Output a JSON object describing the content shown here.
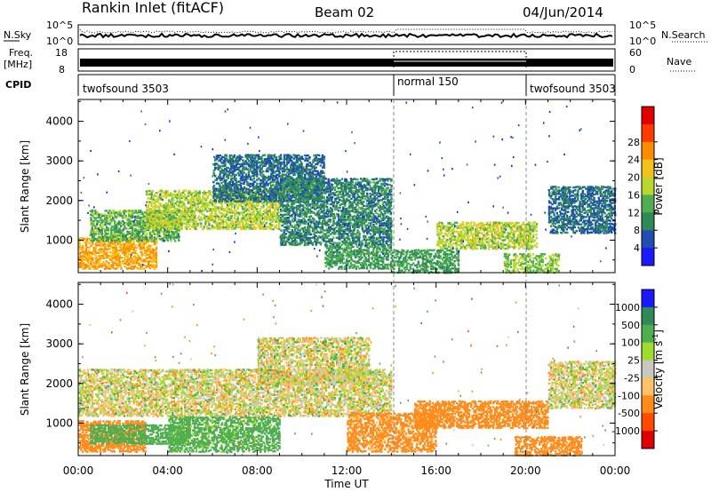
{
  "header": {
    "station": "Rankin Inlet (fitACF)",
    "beam": "Beam 02",
    "date": "04/Jun/2014"
  },
  "panels": {
    "nsky": {
      "left_label": "N.Sky",
      "right_label": "N.Search",
      "left_ticks": [
        "10^5",
        "10^0"
      ],
      "right_ticks": [
        "10^5",
        "10^0"
      ]
    },
    "freq": {
      "left_label": "Freq.",
      "unit": "[MHz]",
      "left_ticks": [
        "18",
        "8"
      ],
      "right_label": "Nave",
      "right_ticks": [
        "60",
        "0"
      ]
    },
    "cpid": {
      "label": "CPID",
      "segments": [
        {
          "name": "twofsound 3503",
          "start": "00:00",
          "end": "14:00"
        },
        {
          "name": "normal 150",
          "start": "14:00",
          "end": "20:00"
        },
        {
          "name": "twofsound 3503",
          "start": "20:00",
          "end": "24:00"
        }
      ]
    }
  },
  "chart_data": [
    {
      "type": "heatmap",
      "quantity": "Power",
      "ylabel": "Slant Range [km]",
      "yticks": [
        1000,
        2000,
        3000,
        4000
      ],
      "ylim": [
        180,
        4550
      ],
      "x_ticks": [
        "00:00",
        "04:00",
        "08:00",
        "12:00",
        "16:00",
        "20:00",
        "00:00"
      ],
      "xlim_hours": [
        0,
        24
      ],
      "colorbar": {
        "label": "Power [dB]",
        "ticks": [
          "4",
          "8",
          "12",
          "16",
          "20",
          "24",
          "28"
        ],
        "colors": [
          "#1a1aff",
          "#1f4fb0",
          "#2e8b57",
          "#4fae4f",
          "#b8d82e",
          "#f2c21c",
          "#ff8c00",
          "#ff3a00",
          "#e00000"
        ]
      },
      "regions": [
        {
          "t0": 0.0,
          "t1": 3.5,
          "r0": 300,
          "r1": 1100,
          "value": 24
        },
        {
          "t0": 0.5,
          "t1": 4.5,
          "r0": 1000,
          "r1": 1800,
          "value": 14
        },
        {
          "t0": 3.0,
          "t1": 9.0,
          "r0": 1300,
          "r1": 2300,
          "value": 18
        },
        {
          "t0": 6.0,
          "t1": 11.0,
          "r0": 2000,
          "r1": 3200,
          "value": 8
        },
        {
          "t0": 9.0,
          "t1": 14.0,
          "r0": 900,
          "r1": 2600,
          "value": 10
        },
        {
          "t0": 11.0,
          "t1": 14.0,
          "r0": 300,
          "r1": 900,
          "value": 12
        },
        {
          "t0": 14.0,
          "t1": 17.0,
          "r0": 200,
          "r1": 800,
          "value": 12
        },
        {
          "t0": 16.0,
          "t1": 20.5,
          "r0": 800,
          "r1": 1500,
          "value": 18
        },
        {
          "t0": 19.0,
          "t1": 21.5,
          "r0": 200,
          "r1": 700,
          "value": 16
        },
        {
          "t0": 21.0,
          "t1": 24.0,
          "r0": 1200,
          "r1": 2400,
          "value": 8
        }
      ]
    },
    {
      "type": "heatmap",
      "quantity": "Velocity",
      "ylabel": "Slant Range [km]",
      "yticks": [
        1000,
        2000,
        3000,
        4000
      ],
      "ylim": [
        180,
        4550
      ],
      "x_ticks": [
        "00:00",
        "04:00",
        "08:00",
        "12:00",
        "16:00",
        "20:00",
        "00:00"
      ],
      "xlim_hours": [
        0,
        24
      ],
      "xlabel": "Time UT",
      "colorbar": {
        "label": "Velocity [m s^-1]",
        "ticks": [
          "1000",
          "500",
          "100",
          "25",
          "-25",
          "-100",
          "-500",
          "-1000"
        ],
        "colors": [
          "#1a1aff",
          "#2e8b57",
          "#4fae4f",
          "#9fdc2e",
          "#c8c8c0",
          "#ffc266",
          "#ff8c1a",
          "#ff4a00",
          "#e00000"
        ]
      },
      "regions": [
        {
          "t0": 0.0,
          "t1": 3.0,
          "r0": 300,
          "r1": 1100,
          "value": -300
        },
        {
          "t0": 0.5,
          "t1": 5.0,
          "r0": 500,
          "r1": 1000,
          "value": 300
        },
        {
          "t0": 0.0,
          "t1": 14.0,
          "r0": 1200,
          "r1": 2400,
          "value": 0
        },
        {
          "t0": 8.0,
          "t1": 13.0,
          "r0": 2000,
          "r1": 3200,
          "value": 0
        },
        {
          "t0": 4.0,
          "t1": 9.0,
          "r0": 300,
          "r1": 1200,
          "value": 200
        },
        {
          "t0": 12.0,
          "t1": 16.0,
          "r0": 300,
          "r1": 1300,
          "value": -200
        },
        {
          "t0": 15.0,
          "t1": 21.0,
          "r0": 900,
          "r1": 1600,
          "value": -300
        },
        {
          "t0": 19.5,
          "t1": 22.5,
          "r0": 200,
          "r1": 700,
          "value": -300
        },
        {
          "t0": 21.0,
          "t1": 24.0,
          "r0": 1400,
          "r1": 2600,
          "value": 0
        }
      ]
    }
  ]
}
